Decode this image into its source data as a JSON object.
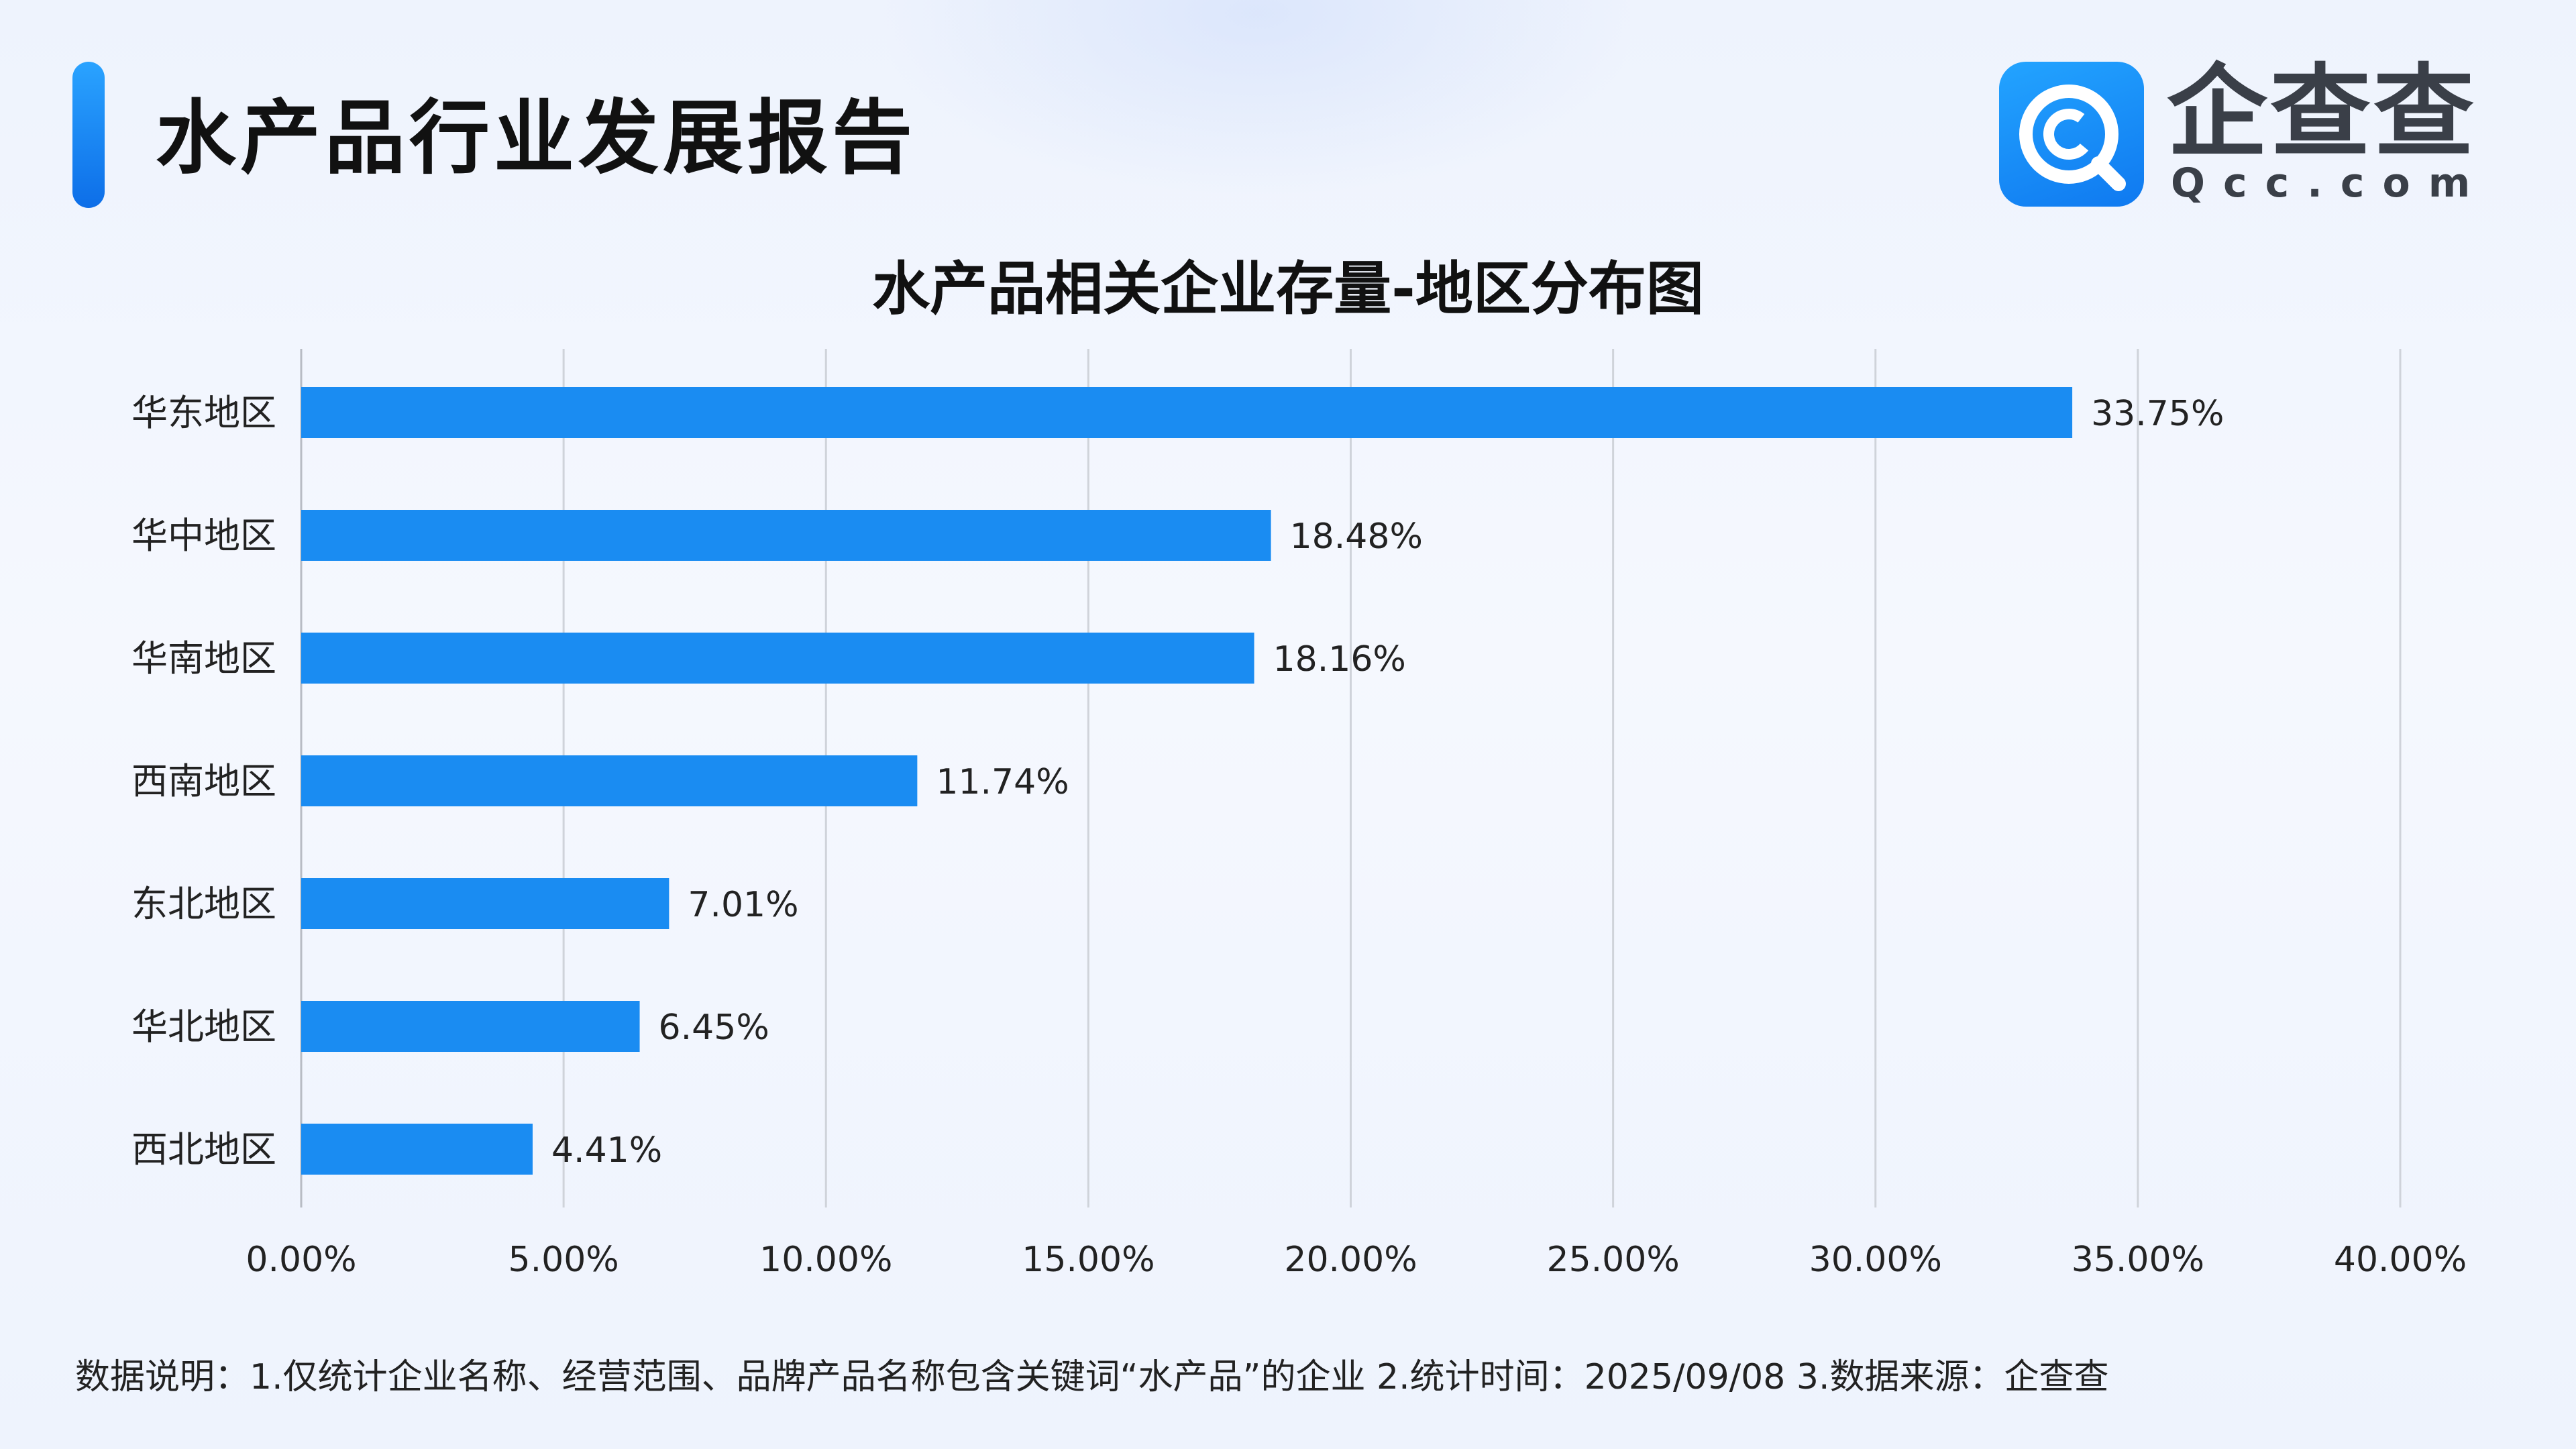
{
  "header": {
    "report_title": "水产品行业发展报告",
    "logo_name": "企查查",
    "logo_domain": "Qcc.com",
    "logo_icon": "qcc-magnifier-logo-icon",
    "accent_color": "#1a8cf2"
  },
  "footnote": "数据说明：1.仅统计企业名称、经营范围、品牌产品名称包含关键词“水产品”的企业   2.统计时间：2025/09/08   3.数据来源：企查查",
  "chart_data": {
    "type": "bar",
    "orientation": "horizontal",
    "title": "水产品相关企业存量-地区分布图",
    "categories": [
      "华东地区",
      "华中地区",
      "华南地区",
      "西南地区",
      "东北地区",
      "华北地区",
      "西北地区"
    ],
    "values": [
      33.75,
      18.48,
      18.16,
      11.74,
      7.01,
      6.45,
      4.41
    ],
    "value_labels": [
      "33.75%",
      "18.48%",
      "18.16%",
      "11.74%",
      "7.01%",
      "6.45%",
      "4.41%"
    ],
    "xlim": [
      0,
      40
    ],
    "x_ticks": [
      0,
      5,
      10,
      15,
      20,
      25,
      30,
      35,
      40
    ],
    "x_tick_labels": [
      "0.00%",
      "5.00%",
      "10.00%",
      "15.00%",
      "20.00%",
      "25.00%",
      "30.00%",
      "35.00%",
      "40.00%"
    ],
    "xlabel": "",
    "ylabel": "",
    "grid": "vertical",
    "bar_color": "#1a8cf2"
  }
}
